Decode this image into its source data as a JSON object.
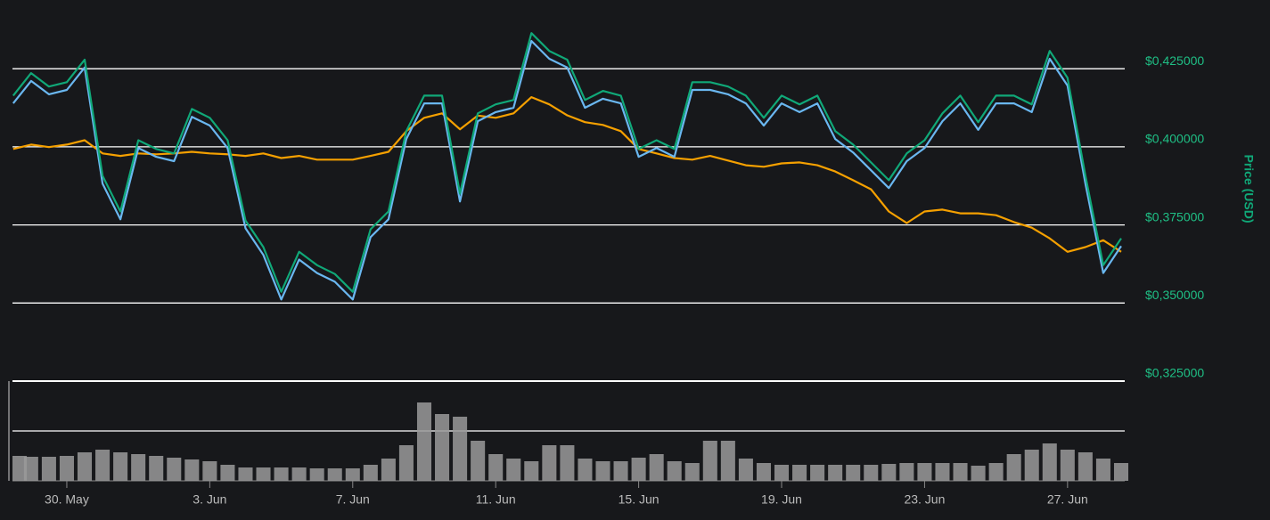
{
  "chart_data": {
    "type": "line",
    "y_label": "Price (USD)",
    "x": [
      -1.5,
      -1,
      -0.5,
      0,
      0.5,
      1,
      1.5,
      2,
      2.5,
      3,
      3.5,
      4,
      4.5,
      5,
      5.5,
      6,
      6.5,
      7,
      7.5,
      8,
      8.5,
      9,
      9.5,
      10,
      10.5,
      11,
      11.5,
      12,
      12.5,
      13,
      13.5,
      14,
      14.5,
      15,
      15.5,
      16,
      16.5,
      17,
      17.5,
      18,
      18.5,
      19,
      19.5,
      20,
      20.5,
      21,
      21.5,
      22,
      22.5,
      23,
      23.5,
      24,
      24.5,
      25,
      25.5,
      26,
      26.5,
      27,
      27.5,
      28,
      28.5,
      29,
      29.5
    ],
    "xlim": [
      -1.52,
      29.6
    ],
    "xticks": [
      {
        "value": 0,
        "label": "30. May"
      },
      {
        "value": 4,
        "label": "3. Jun"
      },
      {
        "value": 8,
        "label": "7. Jun"
      },
      {
        "value": 12,
        "label": "11. Jun"
      },
      {
        "value": 16,
        "label": "15. Jun"
      },
      {
        "value": 20,
        "label": "19. Jun"
      },
      {
        "value": 24,
        "label": "23. Jun"
      },
      {
        "value": 28,
        "label": "27. Jun"
      }
    ],
    "ylim": [
      0.325,
      0.447
    ],
    "yticks": [
      {
        "value": 0.325,
        "label": "$0,325000"
      },
      {
        "value": 0.35,
        "label": "$0,350000"
      },
      {
        "value": 0.375,
        "label": "$0,375000"
      },
      {
        "value": 0.4,
        "label": "$0,400000"
      },
      {
        "value": 0.425,
        "label": "$0,425000"
      }
    ],
    "grid": true,
    "series": [
      {
        "color": "#f5a000",
        "values": [
          0.3993,
          0.4007,
          0.3999,
          0.4007,
          0.4021,
          0.3979,
          0.3971,
          0.3979,
          0.3976,
          0.3979,
          0.3984,
          0.3979,
          0.3976,
          0.3971,
          0.3979,
          0.3964,
          0.3971,
          0.3959,
          0.3959,
          0.3959,
          0.3971,
          0.3984,
          0.405,
          0.4093,
          0.4107,
          0.4056,
          0.41,
          0.4093,
          0.4107,
          0.4159,
          0.4136,
          0.4101,
          0.4079,
          0.407,
          0.405,
          0.3993,
          0.3979,
          0.3964,
          0.3959,
          0.3971,
          0.3956,
          0.3941,
          0.3936,
          0.3947,
          0.395,
          0.3941,
          0.3921,
          0.3893,
          0.3864,
          0.3793,
          0.3756,
          0.3793,
          0.3799,
          0.3787,
          0.3787,
          0.3781,
          0.3759,
          0.3741,
          0.3707,
          0.3664,
          0.3679,
          0.3701,
          0.3664
        ]
      },
      {
        "color": "#6ab7f0",
        "values": [
          0.4139,
          0.4211,
          0.4168,
          0.4182,
          0.4254,
          0.3882,
          0.3768,
          0.3996,
          0.3968,
          0.3954,
          0.4096,
          0.4068,
          0.3996,
          0.3739,
          0.3654,
          0.3511,
          0.3639,
          0.3596,
          0.3568,
          0.3511,
          0.3711,
          0.3768,
          0.4025,
          0.4139,
          0.4139,
          0.3825,
          0.4082,
          0.4111,
          0.4125,
          0.4339,
          0.4282,
          0.4254,
          0.4125,
          0.4154,
          0.4139,
          0.3968,
          0.3996,
          0.3968,
          0.4182,
          0.4182,
          0.4168,
          0.4139,
          0.4068,
          0.4139,
          0.4111,
          0.4139,
          0.4025,
          0.3982,
          0.3925,
          0.3868,
          0.3954,
          0.3996,
          0.4082,
          0.4139,
          0.4054,
          0.4139,
          0.4139,
          0.4111,
          0.4282,
          0.4196,
          0.3882,
          0.3596,
          0.3682
        ]
      },
      {
        "color": "#10a878",
        "values": [
          0.4164,
          0.4236,
          0.4193,
          0.4207,
          0.4279,
          0.3907,
          0.3793,
          0.4021,
          0.3993,
          0.3979,
          0.4121,
          0.4093,
          0.4021,
          0.3764,
          0.3679,
          0.3536,
          0.3664,
          0.3621,
          0.3593,
          0.3536,
          0.3736,
          0.3793,
          0.405,
          0.4164,
          0.4164,
          0.385,
          0.4107,
          0.4136,
          0.415,
          0.4364,
          0.4307,
          0.4279,
          0.415,
          0.4179,
          0.4164,
          0.3993,
          0.4021,
          0.3993,
          0.4207,
          0.4207,
          0.4193,
          0.4164,
          0.4093,
          0.4164,
          0.4136,
          0.4164,
          0.405,
          0.4007,
          0.395,
          0.3893,
          0.3979,
          0.4021,
          0.4107,
          0.4164,
          0.4079,
          0.4164,
          0.4164,
          0.4136,
          0.4307,
          0.4221,
          0.3907,
          0.3621,
          0.3707
        ]
      }
    ],
    "volume": {
      "color": "#9a9a9a",
      "ylim": [
        0,
        112
      ],
      "values": [
        28,
        27,
        27,
        28,
        32,
        35,
        32,
        30,
        28,
        26,
        24,
        22,
        18,
        15,
        15,
        15,
        15,
        14,
        14,
        14,
        18,
        25,
        40,
        88,
        75,
        72,
        45,
        30,
        25,
        22,
        40,
        40,
        25,
        22,
        22,
        26,
        30,
        22,
        20,
        45,
        45,
        25,
        20,
        18,
        18,
        18,
        18,
        18,
        18,
        19,
        20,
        20,
        20,
        20,
        17,
        20,
        30,
        35,
        42,
        35,
        32,
        25,
        20
      ]
    }
  }
}
